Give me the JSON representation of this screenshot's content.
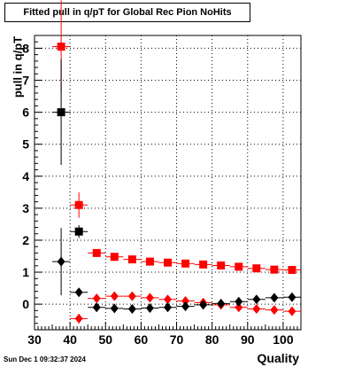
{
  "chart_data": {
    "type": "scatter",
    "title": "Fitted pull in q/pT for Global Rec Pion NoHits",
    "xlabel": "Quality",
    "ylabel": "pull in q/pT",
    "xlim": [
      30,
      105
    ],
    "ylim": [
      -0.8,
      8.4
    ],
    "x_ticks": [
      30,
      40,
      50,
      60,
      70,
      80,
      90,
      100
    ],
    "y_ticks": [
      0,
      1,
      2,
      3,
      4,
      5,
      6,
      7,
      8
    ],
    "grid": true,
    "series": [
      {
        "color": "#ff0000",
        "marker": "square",
        "points": [
          {
            "x": 37.5,
            "y": 8.05,
            "yerr": 1.45
          },
          {
            "x": 42.5,
            "y": 3.1,
            "yerr": 0.4
          },
          {
            "x": 47.5,
            "y": 1.6,
            "yerr": 0.06
          },
          {
            "x": 52.5,
            "y": 1.48,
            "yerr": 0.05
          },
          {
            "x": 57.5,
            "y": 1.4,
            "yerr": 0.05
          },
          {
            "x": 62.5,
            "y": 1.33,
            "yerr": 0.05
          },
          {
            "x": 67.5,
            "y": 1.3,
            "yerr": 0.04
          },
          {
            "x": 72.5,
            "y": 1.27,
            "yerr": 0.04
          },
          {
            "x": 77.5,
            "y": 1.24,
            "yerr": 0.04
          },
          {
            "x": 82.5,
            "y": 1.21,
            "yerr": 0.04
          },
          {
            "x": 87.5,
            "y": 1.17,
            "yerr": 0.04
          },
          {
            "x": 92.5,
            "y": 1.12,
            "yerr": 0.04
          },
          {
            "x": 97.5,
            "y": 1.08,
            "yerr": 0.04
          },
          {
            "x": 102.5,
            "y": 1.07,
            "yerr": 0.04
          }
        ]
      },
      {
        "color": "#000000",
        "marker": "square",
        "points": [
          {
            "x": 37.5,
            "y": 6.0,
            "yerr": 1.65
          },
          {
            "x": 42.5,
            "y": 2.27,
            "yerr": 0.2
          }
        ]
      },
      {
        "color": "#ff0000",
        "marker": "diamond",
        "points": [
          {
            "x": 42.5,
            "y": -0.45,
            "yerr": 0.15
          },
          {
            "x": 47.5,
            "y": 0.18,
            "yerr": 0.05
          },
          {
            "x": 52.5,
            "y": 0.25,
            "yerr": 0.04
          },
          {
            "x": 57.5,
            "y": 0.25,
            "yerr": 0.04
          },
          {
            "x": 62.5,
            "y": 0.2,
            "yerr": 0.04
          },
          {
            "x": 67.5,
            "y": 0.15,
            "yerr": 0.04
          },
          {
            "x": 72.5,
            "y": 0.1,
            "yerr": 0.04
          },
          {
            "x": 77.5,
            "y": 0.05,
            "yerr": 0.04
          },
          {
            "x": 82.5,
            "y": -0.02,
            "yerr": 0.04
          },
          {
            "x": 87.5,
            "y": -0.1,
            "yerr": 0.04
          },
          {
            "x": 92.5,
            "y": -0.15,
            "yerr": 0.04
          },
          {
            "x": 97.5,
            "y": -0.18,
            "yerr": 0.04
          },
          {
            "x": 102.5,
            "y": -0.22,
            "yerr": 0.04
          }
        ]
      },
      {
        "color": "#000000",
        "marker": "diamond",
        "points": [
          {
            "x": 37.5,
            "y": 1.33,
            "yerr": 1.05
          },
          {
            "x": 42.5,
            "y": 0.37,
            "yerr": 0.12
          },
          {
            "x": 47.5,
            "y": -0.1,
            "yerr": 0.04
          },
          {
            "x": 52.5,
            "y": -0.13,
            "yerr": 0.04
          },
          {
            "x": 57.5,
            "y": -0.15,
            "yerr": 0.04
          },
          {
            "x": 62.5,
            "y": -0.12,
            "yerr": 0.04
          },
          {
            "x": 67.5,
            "y": -0.1,
            "yerr": 0.04
          },
          {
            "x": 72.5,
            "y": -0.07,
            "yerr": 0.04
          },
          {
            "x": 77.5,
            "y": -0.02,
            "yerr": 0.04
          },
          {
            "x": 82.5,
            "y": 0.02,
            "yerr": 0.04
          },
          {
            "x": 87.5,
            "y": 0.08,
            "yerr": 0.04
          },
          {
            "x": 92.5,
            "y": 0.15,
            "yerr": 0.04
          },
          {
            "x": 97.5,
            "y": 0.2,
            "yerr": 0.04
          },
          {
            "x": 102.5,
            "y": 0.22,
            "yerr": 0.04
          }
        ]
      }
    ],
    "bin_half_width": 2.5
  },
  "footer": {
    "timestamp": "Sun Dec  1 09:32:37 2024"
  }
}
